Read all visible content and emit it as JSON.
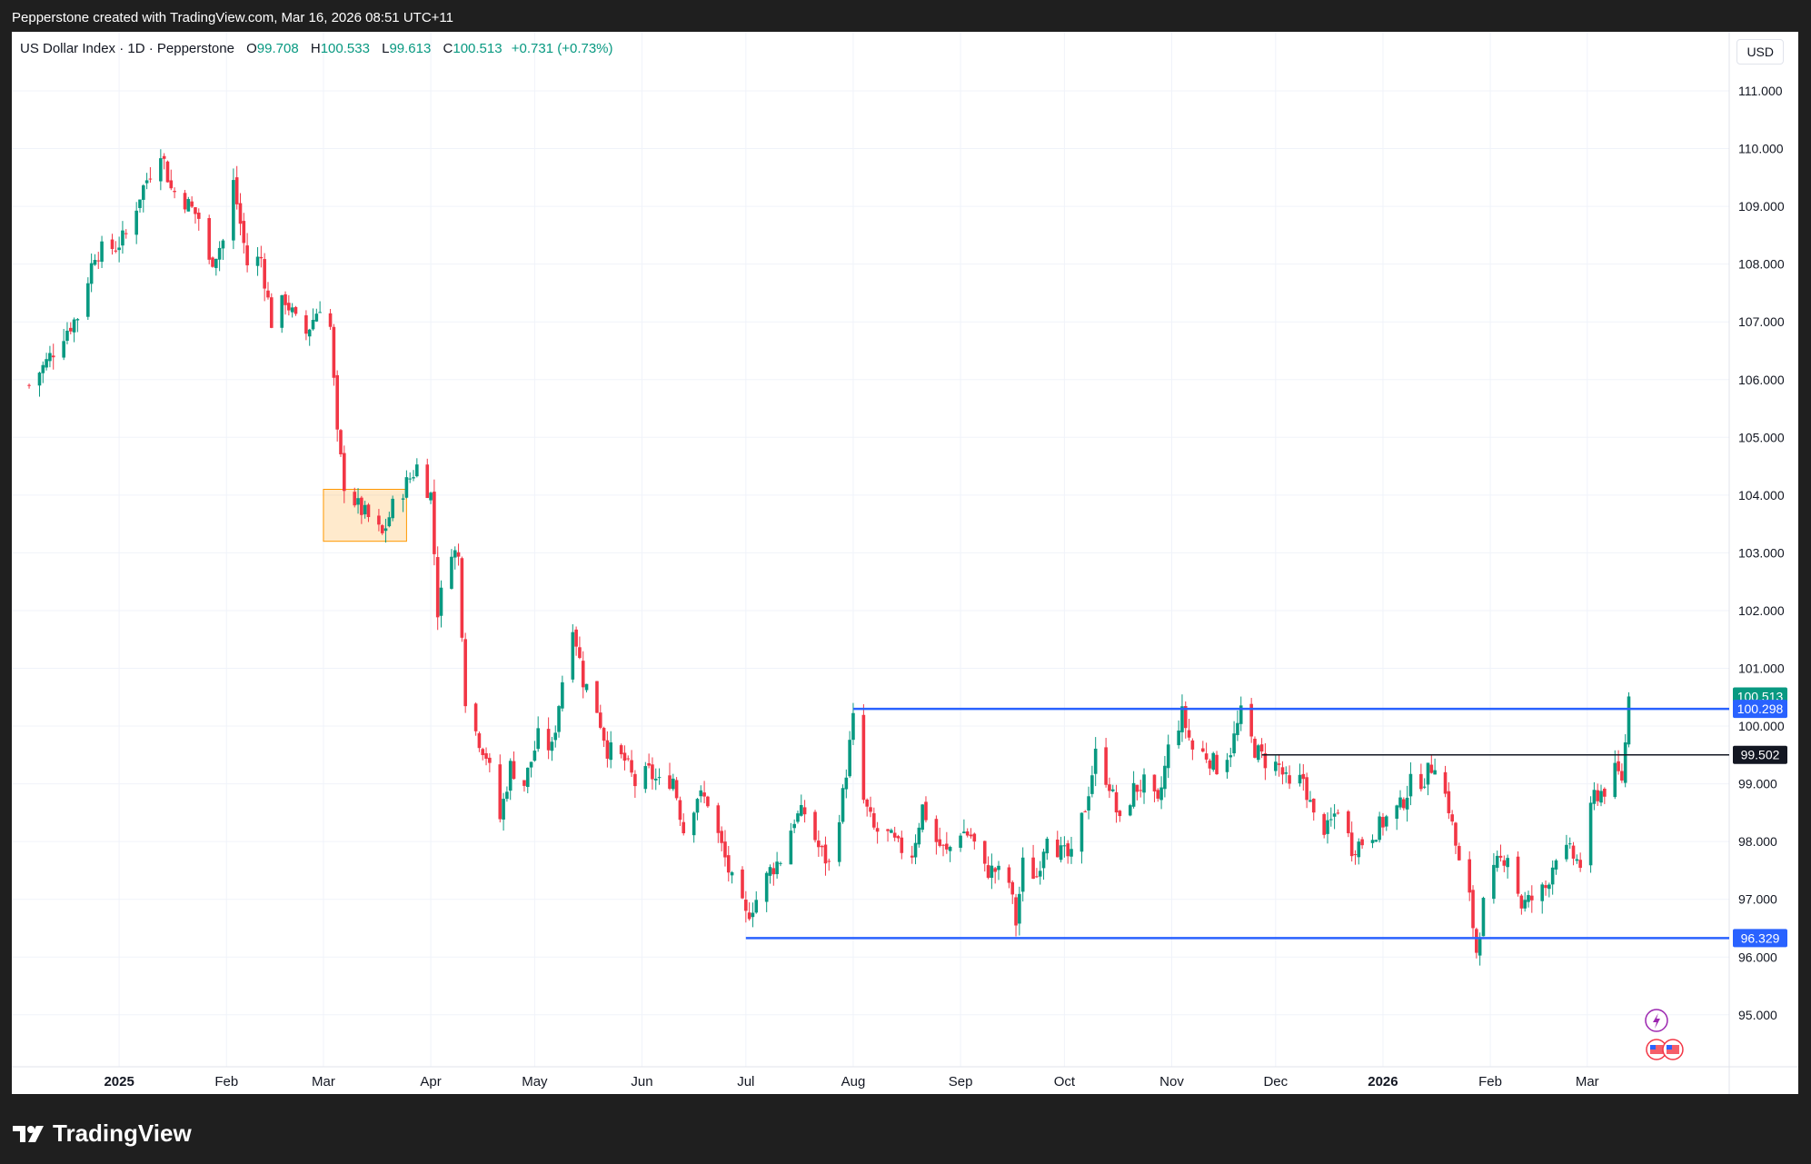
{
  "attribution": "Pepperstone created with TradingView.com, Mar 16, 2026 08:51 UTC+11",
  "legend": {
    "symbol": "US Dollar Index · 1D · Pepperstone",
    "o_label": "O",
    "o": "99.708",
    "h_label": "H",
    "h": "100.533",
    "l_label": "L",
    "l": "99.613",
    "c_label": "C",
    "c": "100.513",
    "change": "+0.731 (+0.73%)"
  },
  "currency": "USD",
  "brand": "TradingView",
  "colors": {
    "up": "#089981",
    "down": "#f23645",
    "level": "#2962ff",
    "price": "#089981",
    "marker": "#131722",
    "zone": "#ff9800"
  },
  "chart_data": {
    "type": "candlestick",
    "x_ticks": [
      {
        "label": "2025",
        "date": "2025-01-01"
      },
      {
        "label": "Feb",
        "date": "2025-02-01"
      },
      {
        "label": "Mar",
        "date": "2025-03-01"
      },
      {
        "label": "Apr",
        "date": "2025-04-01"
      },
      {
        "label": "May",
        "date": "2025-05-01"
      },
      {
        "label": "Jun",
        "date": "2025-06-01"
      },
      {
        "label": "Jul",
        "date": "2025-07-01"
      },
      {
        "label": "Aug",
        "date": "2025-08-01"
      },
      {
        "label": "Sep",
        "date": "2025-09-01"
      },
      {
        "label": "Oct",
        "date": "2025-10-01"
      },
      {
        "label": "Nov",
        "date": "2025-11-01"
      },
      {
        "label": "Dec",
        "date": "2025-12-01"
      },
      {
        "label": "2026",
        "date": "2026-01-01"
      },
      {
        "label": "Feb",
        "date": "2026-02-01"
      },
      {
        "label": "Mar",
        "date": "2026-03-01"
      }
    ],
    "y_ticks": [
      "111.000",
      "110.000",
      "109.000",
      "108.000",
      "107.000",
      "106.000",
      "105.000",
      "104.000",
      "103.000",
      "102.000",
      "101.000",
      "100.000",
      "99.000",
      "98.000",
      "97.000",
      "96.000",
      "95.000"
    ],
    "ylim": [
      94.0,
      112.0
    ],
    "xlim": [
      "2024-12-01",
      "2026-04-11"
    ],
    "price_labels": [
      {
        "text": "100.513",
        "value": 100.513,
        "kind": "last"
      },
      {
        "text": "100.298",
        "value": 100.298,
        "kind": "level"
      },
      {
        "text": "99.502",
        "value": 99.502,
        "kind": "marker"
      },
      {
        "text": "96.329",
        "value": 96.329,
        "kind": "level"
      }
    ],
    "levels": [
      {
        "value": 100.298,
        "from": "2025-08-01",
        "kind": "resistance"
      },
      {
        "value": 96.329,
        "from": "2025-07-01",
        "kind": "support"
      },
      {
        "value": 99.502,
        "from": "2025-11-27",
        "kind": "marker"
      }
    ],
    "zone": {
      "from": "2025-03-01",
      "to": "2025-03-25",
      "top": 104.1,
      "bottom": 103.2
    },
    "closes": [
      [
        "2024-12-06",
        105.9
      ],
      [
        "2024-12-11",
        106.3
      ],
      [
        "2024-12-16",
        106.8
      ],
      [
        "2024-12-20",
        107.1
      ],
      [
        "2024-12-25",
        108.2
      ],
      [
        "2024-12-31",
        108.3
      ],
      [
        "2025-01-03",
        108.5
      ],
      [
        "2025-01-07",
        109.2
      ],
      [
        "2025-01-10",
        109.6
      ],
      [
        "2025-01-13",
        110.0
      ],
      [
        "2025-01-16",
        109.3
      ],
      [
        "2025-01-20",
        109.1
      ],
      [
        "2025-01-24",
        108.8
      ],
      [
        "2025-01-27",
        108.0
      ],
      [
        "2025-01-31",
        108.4
      ],
      [
        "2025-02-03",
        109.4
      ],
      [
        "2025-02-07",
        108.0
      ],
      [
        "2025-02-11",
        108.1
      ],
      [
        "2025-02-14",
        107.0
      ],
      [
        "2025-02-18",
        107.4
      ],
      [
        "2025-02-21",
        107.0
      ],
      [
        "2025-02-24",
        106.8
      ],
      [
        "2025-02-28",
        107.3
      ],
      [
        "2025-03-03",
        106.9
      ],
      [
        "2025-03-05",
        105.0
      ],
      [
        "2025-03-07",
        104.2
      ],
      [
        "2025-03-11",
        103.8
      ],
      [
        "2025-03-14",
        103.6
      ],
      [
        "2025-03-18",
        103.3
      ],
      [
        "2025-03-21",
        103.8
      ],
      [
        "2025-03-25",
        104.2
      ],
      [
        "2025-03-28",
        104.5
      ],
      [
        "2025-04-01",
        104.0
      ],
      [
        "2025-04-03",
        102.0
      ],
      [
        "2025-04-07",
        103.1
      ],
      [
        "2025-04-09",
        102.9
      ],
      [
        "2025-04-11",
        100.5
      ],
      [
        "2025-04-14",
        99.9
      ],
      [
        "2025-04-17",
        99.5
      ],
      [
        "2025-04-21",
        98.4
      ],
      [
        "2025-04-24",
        99.3
      ],
      [
        "2025-04-28",
        99.0
      ],
      [
        "2025-05-02",
        99.8
      ],
      [
        "2025-05-06",
        99.6
      ],
      [
        "2025-05-09",
        100.8
      ],
      [
        "2025-05-12",
        101.8
      ],
      [
        "2025-05-15",
        100.8
      ],
      [
        "2025-05-19",
        100.3
      ],
      [
        "2025-05-22",
        99.6
      ],
      [
        "2025-05-27",
        99.4
      ],
      [
        "2025-05-30",
        99.0
      ],
      [
        "2025-06-03",
        99.2
      ],
      [
        "2025-06-06",
        99.0
      ],
      [
        "2025-06-10",
        99.1
      ],
      [
        "2025-06-13",
        98.2
      ],
      [
        "2025-06-17",
        98.8
      ],
      [
        "2025-06-20",
        98.7
      ],
      [
        "2025-06-24",
        97.9
      ],
      [
        "2025-06-27",
        97.3
      ],
      [
        "2025-07-01",
        96.7
      ],
      [
        "2025-07-04",
        97.0
      ],
      [
        "2025-07-08",
        97.5
      ],
      [
        "2025-07-11",
        97.7
      ],
      [
        "2025-07-15",
        98.4
      ],
      [
        "2025-07-18",
        98.5
      ],
      [
        "2025-07-22",
        97.9
      ],
      [
        "2025-07-25",
        97.6
      ],
      [
        "2025-07-29",
        98.8
      ],
      [
        "2025-08-01",
        100.1
      ],
      [
        "2025-08-04",
        98.7
      ],
      [
        "2025-08-07",
        98.2
      ],
      [
        "2025-08-11",
        98.1
      ],
      [
        "2025-08-14",
        97.9
      ],
      [
        "2025-08-18",
        97.8
      ],
      [
        "2025-08-21",
        98.6
      ],
      [
        "2025-08-25",
        98.0
      ],
      [
        "2025-08-28",
        97.8
      ],
      [
        "2025-09-01",
        98.2
      ],
      [
        "2025-09-04",
        98.1
      ],
      [
        "2025-09-08",
        97.5
      ],
      [
        "2025-09-11",
        97.5
      ],
      [
        "2025-09-15",
        97.3
      ],
      [
        "2025-09-17",
        96.6
      ],
      [
        "2025-09-19",
        97.6
      ],
      [
        "2025-09-23",
        97.4
      ],
      [
        "2025-09-26",
        98.2
      ],
      [
        "2025-09-30",
        97.8
      ],
      [
        "2025-10-03",
        97.7
      ],
      [
        "2025-10-07",
        98.6
      ],
      [
        "2025-10-10",
        99.5
      ],
      [
        "2025-10-14",
        99.0
      ],
      [
        "2025-10-17",
        98.3
      ],
      [
        "2025-10-21",
        98.9
      ],
      [
        "2025-10-24",
        99.0
      ],
      [
        "2025-10-28",
        98.6
      ],
      [
        "2025-10-31",
        99.6
      ],
      [
        "2025-11-04",
        100.2
      ],
      [
        "2025-11-07",
        99.6
      ],
      [
        "2025-11-11",
        99.5
      ],
      [
        "2025-11-14",
        99.3
      ],
      [
        "2025-11-18",
        99.6
      ],
      [
        "2025-11-21",
        100.2
      ],
      [
        "2025-11-25",
        99.6
      ],
      [
        "2025-11-28",
        99.4
      ],
      [
        "2025-12-02",
        99.3
      ],
      [
        "2025-12-05",
        98.9
      ],
      [
        "2025-12-09",
        99.1
      ],
      [
        "2025-12-12",
        98.4
      ],
      [
        "2025-12-16",
        98.2
      ],
      [
        "2025-12-19",
        98.6
      ],
      [
        "2025-12-23",
        97.9
      ],
      [
        "2025-12-26",
        98.0
      ],
      [
        "2025-12-30",
        98.2
      ],
      [
        "2026-01-02",
        98.4
      ],
      [
        "2026-01-06",
        98.6
      ],
      [
        "2026-01-09",
        99.0
      ],
      [
        "2026-01-13",
        99.1
      ],
      [
        "2026-01-16",
        99.4
      ],
      [
        "2026-01-20",
        98.6
      ],
      [
        "2026-01-23",
        97.6
      ],
      [
        "2026-01-26",
        97.0
      ],
      [
        "2026-01-28",
        96.1
      ],
      [
        "2026-01-30",
        96.9
      ],
      [
        "2026-02-03",
        97.6
      ],
      [
        "2026-02-06",
        97.8
      ],
      [
        "2026-02-10",
        96.9
      ],
      [
        "2026-02-13",
        97.0
      ],
      [
        "2026-02-17",
        97.2
      ],
      [
        "2026-02-20",
        97.8
      ],
      [
        "2026-02-24",
        97.8
      ],
      [
        "2026-02-27",
        97.6
      ],
      [
        "2026-03-03",
        98.8
      ],
      [
        "2026-03-06",
        98.9
      ],
      [
        "2026-03-09",
        99.2
      ],
      [
        "2026-03-11",
        99.1
      ],
      [
        "2026-03-12",
        99.7
      ],
      [
        "2026-03-13",
        100.513
      ]
    ]
  }
}
